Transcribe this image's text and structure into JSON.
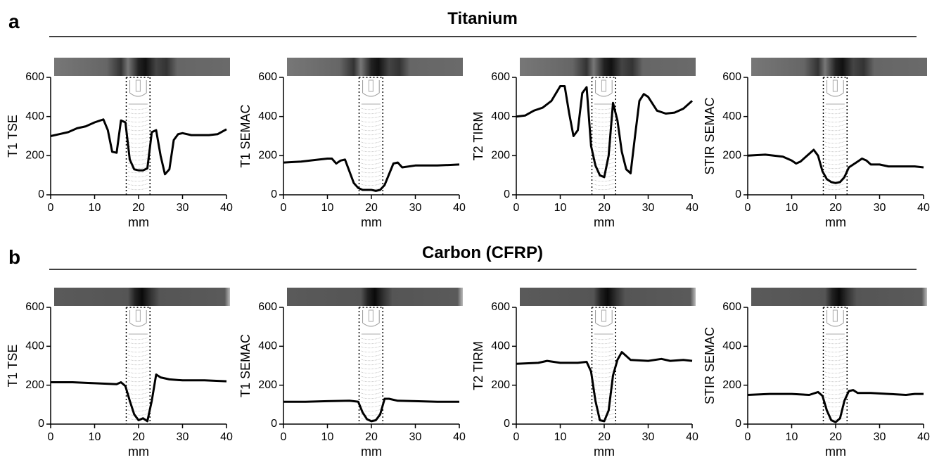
{
  "sections": [
    {
      "label": "a",
      "title": "Titanium"
    },
    {
      "label": "b",
      "title": "Carbon (CFRP)"
    }
  ],
  "chart_data": [
    {
      "type": "line",
      "ylabel": "T1 TSE",
      "xlabel": "mm",
      "color": "#000000",
      "xlim": [
        0,
        40
      ],
      "xticks": [
        0,
        10,
        20,
        30,
        40
      ],
      "ylim": [
        0,
        600
      ],
      "yticks": [
        0,
        200,
        400,
        600
      ],
      "x": [
        0,
        2,
        4,
        6,
        8,
        10,
        12,
        13,
        14,
        15,
        16,
        17,
        18,
        19,
        20,
        21,
        22,
        23,
        24,
        25,
        26,
        27,
        28,
        29,
        30,
        32,
        34,
        36,
        38,
        40
      ],
      "values": [
        300,
        310,
        320,
        340,
        350,
        370,
        385,
        330,
        220,
        215,
        380,
        370,
        180,
        130,
        125,
        125,
        135,
        320,
        330,
        200,
        105,
        130,
        280,
        310,
        315,
        305,
        305,
        305,
        310,
        335
      ]
    },
    {
      "type": "line",
      "ylabel": "T1 SEMAC",
      "xlabel": "mm",
      "color": "#000000",
      "xlim": [
        0,
        40
      ],
      "xticks": [
        0,
        10,
        20,
        30,
        40
      ],
      "ylim": [
        0,
        600
      ],
      "yticks": [
        0,
        200,
        400,
        600
      ],
      "x": [
        0,
        4,
        8,
        10,
        11,
        12,
        13,
        14,
        16,
        17,
        18,
        20,
        21,
        22,
        23,
        25,
        26,
        27,
        30,
        35,
        40
      ],
      "values": [
        165,
        170,
        180,
        185,
        185,
        160,
        175,
        180,
        60,
        35,
        25,
        25,
        20,
        25,
        50,
        160,
        165,
        140,
        150,
        150,
        155
      ]
    },
    {
      "type": "line",
      "ylabel": "T2 TIRM",
      "xlabel": "mm",
      "color": "#000000",
      "xlim": [
        0,
        40
      ],
      "xticks": [
        0,
        10,
        20,
        30,
        40
      ],
      "ylim": [
        0,
        600
      ],
      "yticks": [
        0,
        200,
        400,
        600
      ],
      "x": [
        0,
        2,
        4,
        6,
        8,
        10,
        11,
        12,
        13,
        14,
        15,
        16,
        17,
        18,
        19,
        20,
        21,
        22,
        23,
        24,
        25,
        26,
        27,
        28,
        29,
        30,
        32,
        34,
        36,
        38,
        40
      ],
      "values": [
        400,
        405,
        430,
        445,
        480,
        555,
        555,
        420,
        300,
        330,
        520,
        550,
        250,
        150,
        100,
        90,
        200,
        470,
        380,
        220,
        130,
        110,
        300,
        480,
        515,
        500,
        430,
        415,
        420,
        440,
        480
      ]
    },
    {
      "type": "line",
      "ylabel": "STIR SEMAC",
      "xlabel": "mm",
      "color": "#000000",
      "xlim": [
        0,
        40
      ],
      "xticks": [
        0,
        10,
        20,
        30,
        40
      ],
      "ylim": [
        0,
        600
      ],
      "yticks": [
        0,
        200,
        400,
        600
      ],
      "x": [
        0,
        4,
        8,
        10,
        11,
        12,
        14,
        15,
        16,
        17,
        18,
        19,
        20,
        21,
        22,
        23,
        25,
        26,
        27,
        28,
        30,
        32,
        35,
        38,
        40
      ],
      "values": [
        200,
        205,
        195,
        175,
        160,
        170,
        210,
        230,
        200,
        120,
        80,
        65,
        60,
        65,
        90,
        140,
        170,
        185,
        175,
        155,
        155,
        145,
        145,
        145,
        140
      ]
    },
    {
      "type": "line",
      "ylabel": "T1 TSE",
      "xlabel": "mm",
      "color": "#000000",
      "xlim": [
        0,
        40
      ],
      "xticks": [
        0,
        10,
        20,
        30,
        40
      ],
      "ylim": [
        0,
        600
      ],
      "yticks": [
        0,
        200,
        400,
        600
      ],
      "x": [
        0,
        5,
        10,
        15,
        16,
        17,
        18,
        19,
        20,
        21,
        22,
        23,
        24,
        25,
        27,
        30,
        35,
        40
      ],
      "values": [
        215,
        215,
        210,
        205,
        215,
        195,
        120,
        50,
        20,
        30,
        15,
        120,
        255,
        240,
        230,
        225,
        225,
        220
      ]
    },
    {
      "type": "line",
      "ylabel": "T1 SEMAC",
      "xlabel": "mm",
      "color": "#000000",
      "xlim": [
        0,
        40
      ],
      "xticks": [
        0,
        10,
        20,
        30,
        40
      ],
      "ylim": [
        0,
        600
      ],
      "yticks": [
        0,
        200,
        400,
        600
      ],
      "x": [
        0,
        5,
        10,
        15,
        17,
        18,
        19,
        20,
        21,
        22,
        23,
        24,
        26,
        30,
        35,
        40
      ],
      "values": [
        115,
        115,
        118,
        120,
        115,
        60,
        25,
        15,
        20,
        50,
        130,
        130,
        120,
        118,
        115,
        115
      ]
    },
    {
      "type": "line",
      "ylabel": "T2 TIRM",
      "xlabel": "mm",
      "color": "#000000",
      "xlim": [
        0,
        40
      ],
      "xticks": [
        0,
        10,
        20,
        30,
        40
      ],
      "ylim": [
        0,
        600
      ],
      "yticks": [
        0,
        200,
        400,
        600
      ],
      "x": [
        0,
        5,
        7,
        10,
        14,
        16,
        17,
        18,
        19,
        20,
        21,
        22,
        23,
        24,
        26,
        30,
        33,
        35,
        38,
        40
      ],
      "values": [
        310,
        315,
        325,
        315,
        315,
        320,
        270,
        120,
        20,
        15,
        70,
        250,
        330,
        370,
        330,
        325,
        335,
        325,
        330,
        325
      ]
    },
    {
      "type": "line",
      "ylabel": "STIR SEMAC",
      "xlabel": "mm",
      "color": "#000000",
      "xlim": [
        0,
        40
      ],
      "xticks": [
        0,
        10,
        20,
        30,
        40
      ],
      "ylim": [
        0,
        600
      ],
      "yticks": [
        0,
        200,
        400,
        600
      ],
      "x": [
        0,
        5,
        10,
        14,
        16,
        17,
        18,
        19,
        20,
        21,
        22,
        23,
        24,
        25,
        28,
        32,
        36,
        38,
        40
      ],
      "values": [
        150,
        155,
        155,
        150,
        165,
        145,
        70,
        20,
        10,
        30,
        120,
        170,
        175,
        160,
        160,
        155,
        150,
        155,
        155
      ]
    }
  ]
}
